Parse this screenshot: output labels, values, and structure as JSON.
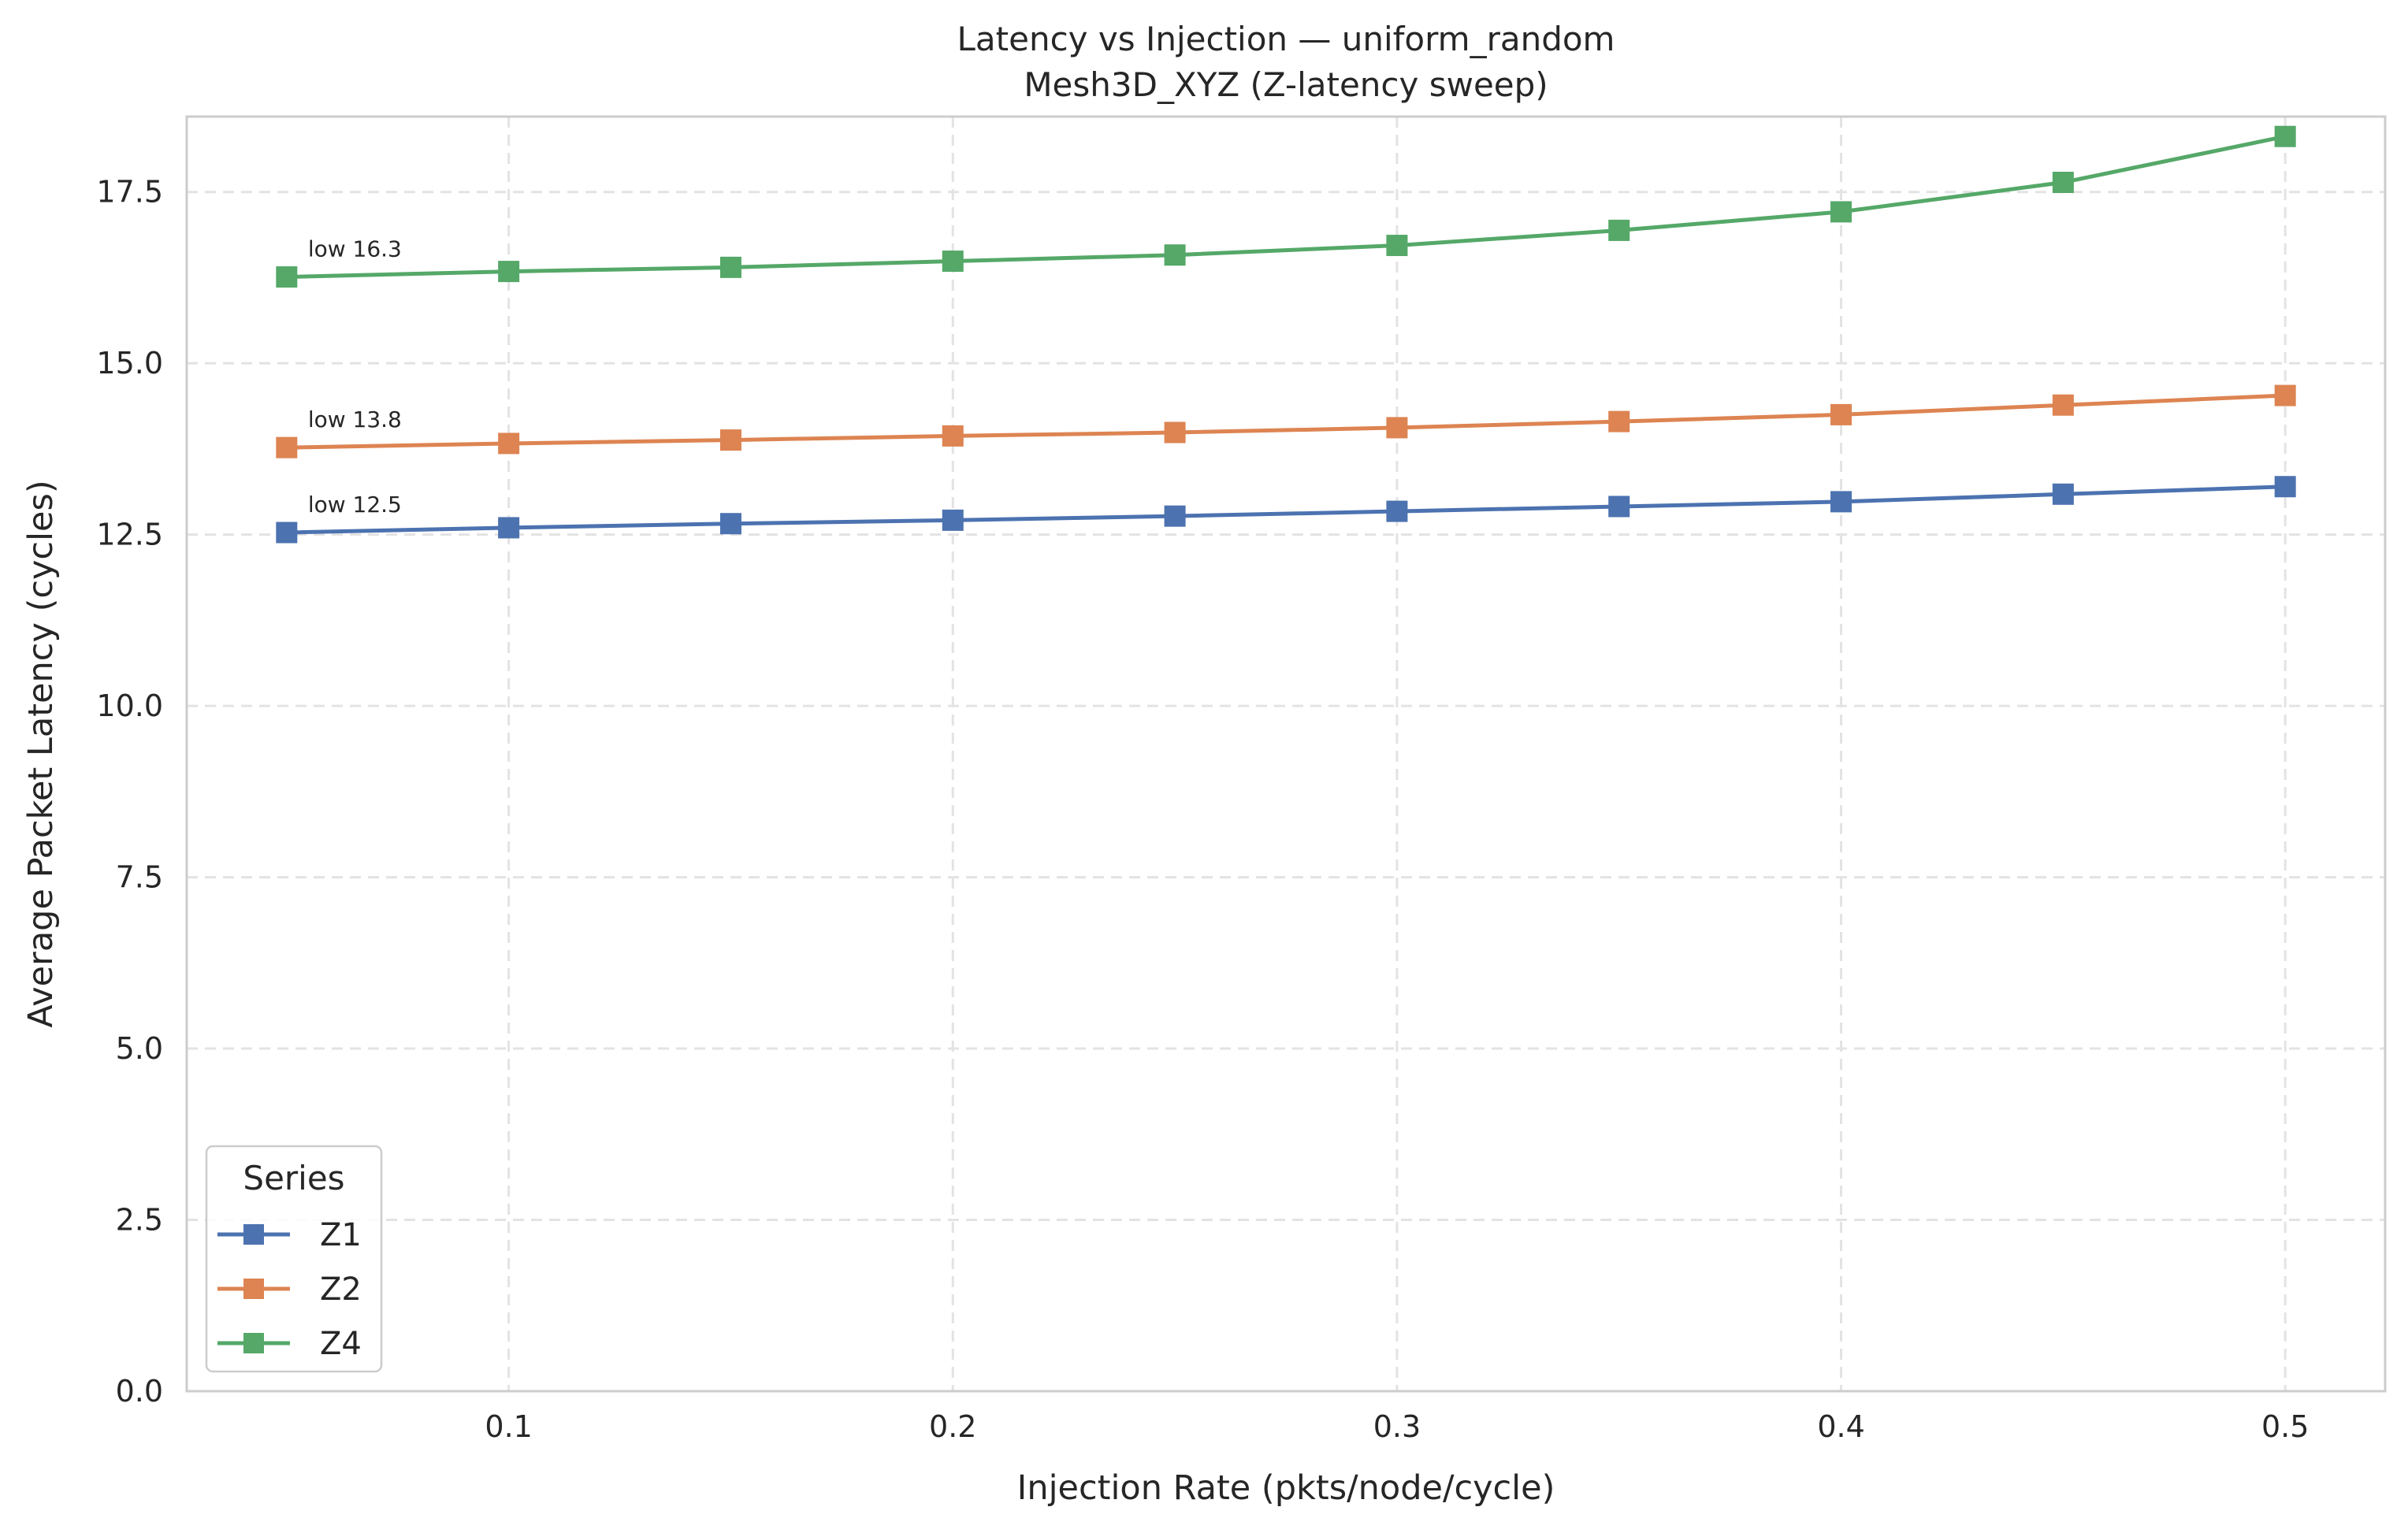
{
  "chart_data": {
    "type": "line",
    "title": "Latency vs Injection — uniform_random",
    "subtitle": "Mesh3D_XYZ (Z-latency sweep)",
    "xlabel": "Injection Rate (pkts/node/cycle)",
    "ylabel": "Average Packet Latency (cycles)",
    "x": [
      0.05,
      0.1,
      0.15,
      0.2,
      0.25,
      0.3,
      0.35,
      0.4,
      0.45,
      0.5
    ],
    "xlim": [
      0.0275,
      0.5225
    ],
    "ylim": [
      0,
      18.6
    ],
    "xticks": [
      0.1,
      0.2,
      0.3,
      0.4,
      0.5
    ],
    "xtick_labels": [
      "0.1",
      "0.2",
      "0.3",
      "0.4",
      "0.5"
    ],
    "yticks": [
      0,
      2.5,
      5,
      7.5,
      10,
      12.5,
      15,
      17.5
    ],
    "ytick_labels": [
      "0.0",
      "2.5",
      "5.0",
      "7.5",
      "10.0",
      "12.5",
      "15.0",
      "17.5"
    ],
    "grid": true,
    "legend": {
      "title": "Series",
      "position": "bottom-left"
    },
    "series": [
      {
        "name": "Z1",
        "color": "#4c72b0",
        "marker": "square",
        "values": [
          12.53,
          12.6,
          12.66,
          12.71,
          12.77,
          12.84,
          12.91,
          12.98,
          13.09,
          13.2
        ]
      },
      {
        "name": "Z2",
        "color": "#dd8452",
        "marker": "square",
        "values": [
          13.77,
          13.83,
          13.88,
          13.94,
          13.99,
          14.06,
          14.15,
          14.25,
          14.39,
          14.53
        ]
      },
      {
        "name": "Z4",
        "color": "#55a868",
        "marker": "square",
        "values": [
          16.26,
          16.34,
          16.4,
          16.49,
          16.58,
          16.72,
          16.94,
          17.21,
          17.64,
          18.31
        ]
      }
    ],
    "annotations": [
      {
        "text": "low 12.5",
        "series": "Z1",
        "x": 0.05,
        "y": 12.53
      },
      {
        "text": "low 13.8",
        "series": "Z2",
        "x": 0.05,
        "y": 13.77
      },
      {
        "text": "low 16.3",
        "series": "Z4",
        "x": 0.05,
        "y": 16.26
      }
    ]
  }
}
